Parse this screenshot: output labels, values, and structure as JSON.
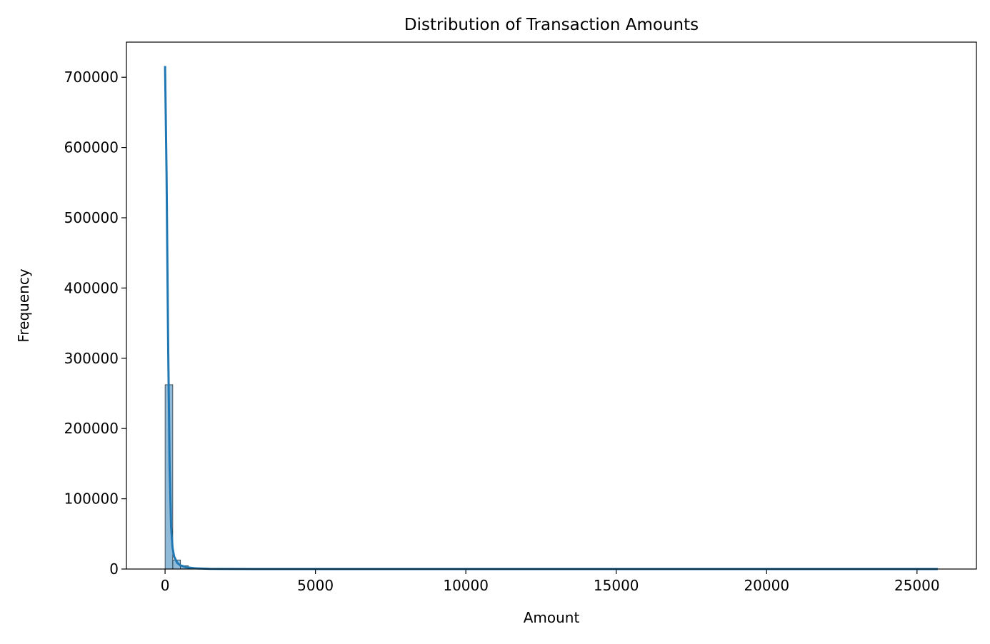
{
  "chart_data": {
    "type": "histogram",
    "title": "Distribution of Transaction Amounts",
    "x_label": "Amount",
    "y_label": "Frequency",
    "bins": [
      0,
      256.9,
      513.8,
      770.7,
      1027.6,
      1284.6,
      1541.5,
      1798.4,
      2055.3,
      2312.2,
      2569.1,
      2826.0,
      3082.9,
      3339.8,
      3596.8,
      3853.7,
      4110.6,
      4367.5,
      4624.4,
      4881.3,
      5138.2,
      5395.1,
      5652.1,
      5909.0,
      6165.9,
      6422.8,
      6679.7,
      6936.6,
      7193.5,
      7450.4,
      7707.3,
      7964.3,
      8221.2,
      8478.1,
      8735.0,
      8991.9,
      9248.8,
      9505.7,
      9762.6,
      10019.6,
      10276.5,
      10533.4,
      10790.3,
      11047.2,
      11304.1,
      11561.0,
      11817.9,
      12074.8,
      12331.8,
      12588.7,
      12845.6,
      13102.5,
      13359.4,
      13616.3,
      13873.2,
      14130.1,
      14387.0,
      14644.0,
      14900.9,
      15157.8,
      15414.7,
      15671.6,
      15928.5,
      16185.4,
      16442.3,
      16699.2,
      16956.2,
      17213.1,
      17470.0,
      17726.9,
      17983.8,
      18240.7,
      18497.6,
      18754.5,
      19011.5,
      19268.4,
      19525.3,
      19782.2,
      20039.1,
      20296.0,
      20552.9,
      20809.8,
      21066.7,
      21323.7,
      21580.6,
      21837.5,
      22094.4,
      22351.3,
      22608.2,
      22865.1,
      23122.0,
      23378.9,
      23635.8,
      23892.8,
      24149.7,
      24406.6,
      24663.5,
      24920.4,
      25177.3,
      25434.2,
      25691.2
    ],
    "counts": [
      262300,
      13000,
      4700,
      2100,
      1000,
      550,
      330,
      200,
      130,
      90,
      60,
      40,
      30,
      20,
      15,
      10,
      8,
      6,
      5,
      4,
      3,
      3,
      2,
      2,
      2,
      1,
      1,
      1,
      1,
      1,
      1,
      1,
      0,
      1,
      0,
      0,
      1,
      0,
      0,
      0,
      0,
      0,
      0,
      0,
      0,
      0,
      0,
      0,
      0,
      0,
      0,
      0,
      0,
      0,
      0,
      0,
      0,
      0,
      0,
      0,
      0,
      0,
      0,
      0,
      0,
      0,
      0,
      0,
      0,
      0,
      0,
      0,
      0,
      0,
      0,
      0,
      0,
      0,
      0,
      0,
      0,
      0,
      0,
      0,
      0,
      0,
      0,
      0,
      0,
      0,
      0,
      0,
      0,
      0,
      0,
      0,
      0,
      0,
      0,
      1
    ],
    "color": "#1f77b4",
    "kde": {
      "x": [
        0,
        50,
        100,
        150,
        200,
        250,
        300,
        400,
        500,
        700,
        1000,
        1500,
        2000,
        3000,
        5000,
        10000,
        15000,
        20000,
        25691.2
      ],
      "y": [
        716000,
        560000,
        330000,
        150000,
        60000,
        30000,
        18000,
        9000,
        5500,
        2500,
        1000,
        300,
        120,
        40,
        10,
        2,
        1,
        1,
        1
      ]
    },
    "xlim": [
      -1284.6,
      26975.8
    ],
    "ylim": [
      0,
      750000
    ],
    "xticks": [
      0,
      5000,
      10000,
      15000,
      20000,
      25000
    ],
    "yticks": [
      0,
      100000,
      200000,
      300000,
      400000,
      500000,
      600000,
      700000
    ]
  }
}
